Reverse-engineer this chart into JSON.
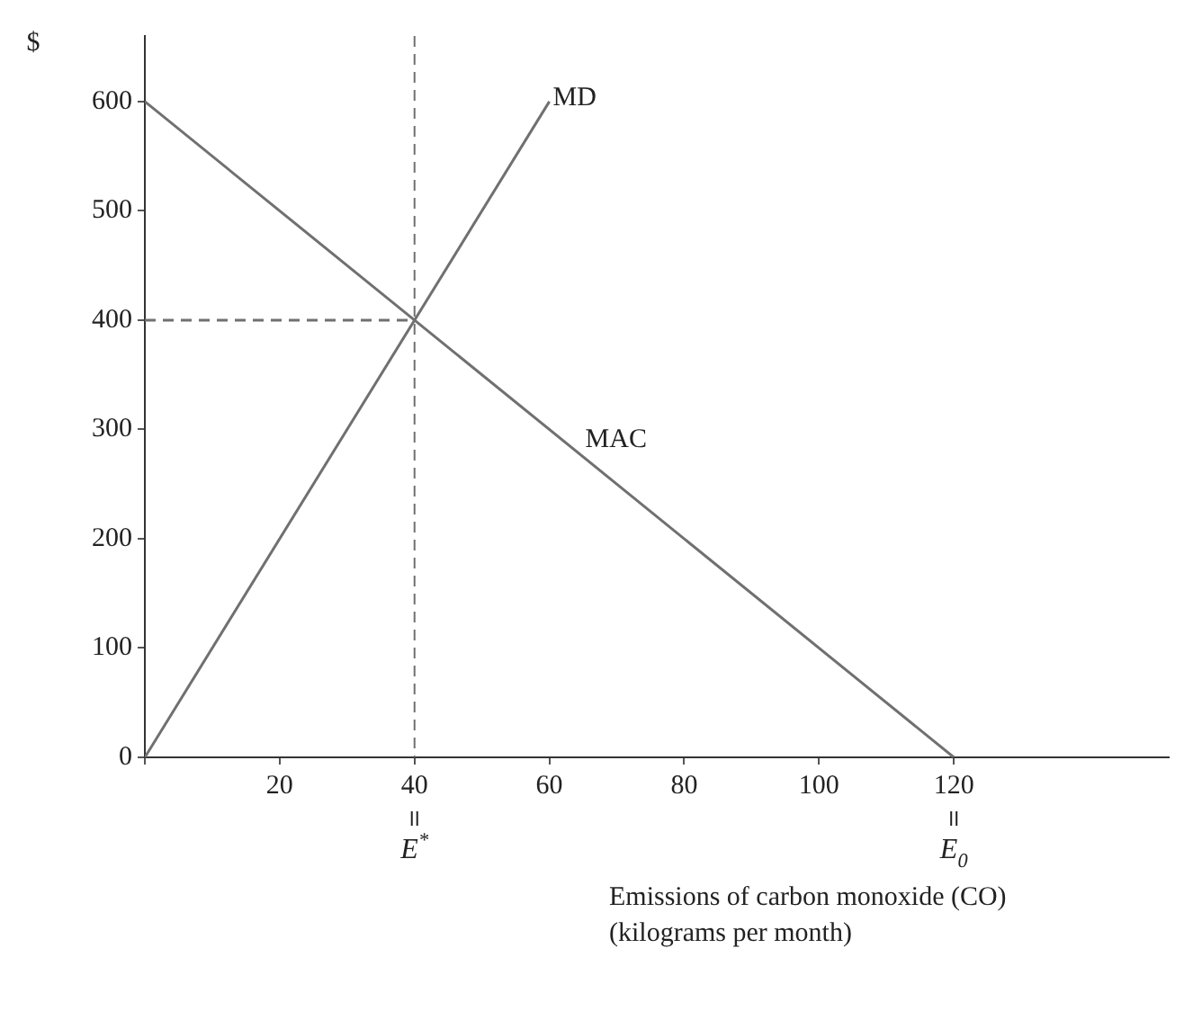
{
  "chart_data": {
    "type": "line",
    "ylabel": "$",
    "xlabel": "Emissions of carbon monoxide (CO)\n(kilograms per month)",
    "xlim": [
      0,
      152
    ],
    "ylim": [
      0,
      660
    ],
    "xticks": [
      {
        "value": 0,
        "label": null
      },
      20,
      40,
      60,
      80,
      100,
      120
    ],
    "yticks": [
      0,
      100,
      200,
      300,
      400,
      500,
      600
    ],
    "grid": false,
    "legend": false,
    "marker": "none",
    "series": [
      {
        "name": "MD",
        "color": "#707070",
        "x": [
          0,
          60
        ],
        "values": [
          0,
          600
        ]
      },
      {
        "name": "MAC",
        "color": "#707070",
        "x": [
          0,
          120
        ],
        "values": [
          600,
          0
        ]
      },
      {
        "color": "#707070",
        "x": [
          0,
          40
        ],
        "values": [
          400,
          400
        ],
        "line_style": "dashed"
      }
    ],
    "ref_lines": [
      {
        "axis": "x",
        "value": 40,
        "color": "#707070",
        "line_style": "dashed"
      }
    ],
    "annotations": [
      {
        "text": "E*",
        "x": 40
      },
      {
        "text": "E$_{0}$",
        "x": 120
      }
    ]
  }
}
